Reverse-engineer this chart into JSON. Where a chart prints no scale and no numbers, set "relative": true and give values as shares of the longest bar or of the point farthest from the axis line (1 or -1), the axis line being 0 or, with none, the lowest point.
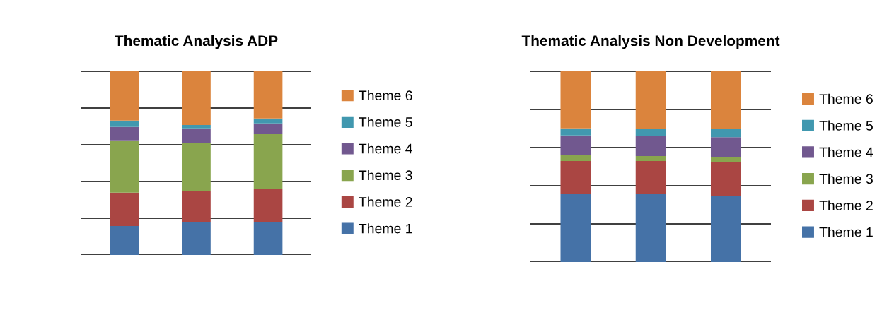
{
  "chart_data": [
    {
      "type": "bar",
      "title": "Thematic Analysis ADP",
      "categories": [
        null,
        null,
        null
      ],
      "stacked": true,
      "relative": true,
      "grid": "y",
      "legend": "right",
      "series": [
        {
          "name": "Theme 1",
          "color": "#4572a7",
          "values": [
            0.158,
            0.177,
            0.181
          ]
        },
        {
          "name": "Theme 2",
          "color": "#aa4643",
          "values": [
            0.181,
            0.169,
            0.181
          ]
        },
        {
          "name": "Theme 3",
          "color": "#89a54e",
          "values": [
            0.285,
            0.262,
            0.296
          ]
        },
        {
          "name": "Theme 4",
          "color": "#71588f",
          "values": [
            0.073,
            0.081,
            0.058
          ]
        },
        {
          "name": "Theme 5",
          "color": "#4198af",
          "values": [
            0.035,
            0.019,
            0.027
          ]
        },
        {
          "name": "Theme 6",
          "color": "#db843d",
          "values": [
            0.268,
            0.292,
            0.257
          ]
        }
      ]
    },
    {
      "type": "bar",
      "title": "Thematic Analysis Non Development",
      "categories": [
        null,
        null,
        null
      ],
      "stacked": true,
      "relative": true,
      "grid": "y",
      "legend": "right",
      "series": [
        {
          "name": "Theme 1",
          "color": "#4572a7",
          "values": [
            0.356,
            0.356,
            0.348
          ]
        },
        {
          "name": "Theme 2",
          "color": "#aa4643",
          "values": [
            0.174,
            0.174,
            0.174
          ]
        },
        {
          "name": "Theme 3",
          "color": "#89a54e",
          "values": [
            0.03,
            0.026,
            0.026
          ]
        },
        {
          "name": "Theme 4",
          "color": "#71588f",
          "values": [
            0.104,
            0.107,
            0.107
          ]
        },
        {
          "name": "Theme 5",
          "color": "#4198af",
          "values": [
            0.037,
            0.037,
            0.041
          ]
        },
        {
          "name": "Theme 6",
          "color": "#db843d",
          "values": [
            0.299,
            0.3,
            0.304
          ]
        }
      ]
    }
  ]
}
